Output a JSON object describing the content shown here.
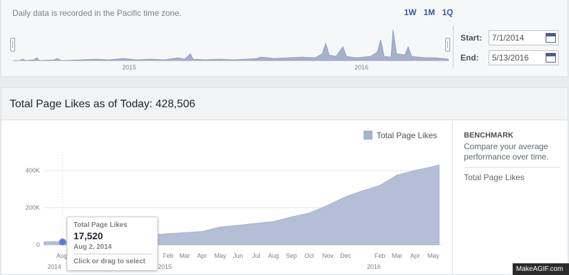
{
  "range": {
    "note": "Daily data is recorded in the Pacific time zone.",
    "zoom_options": [
      "1W",
      "1M",
      "1Q"
    ],
    "mini_years": [
      "2015",
      "2016"
    ],
    "start_label": "Start:",
    "start_value": "7/1/2014",
    "end_label": "End:",
    "end_value": "5/13/2016"
  },
  "card": {
    "title": "Total Page Likes as of Today: 428,506"
  },
  "legend": {
    "label": "Total Page Likes",
    "color": "#a5b1cd"
  },
  "benchmark": {
    "title": "BENCHMARK",
    "description": "Compare your average performance over time.",
    "item": "Total Page Likes"
  },
  "tooltip": {
    "label": "Total Page Likes",
    "value": "17,520",
    "date": "Aug 2, 2014",
    "action": "Click or drag to select"
  },
  "watermark": "MakeAGIF.com",
  "chart_data": {
    "type": "area",
    "series": [
      {
        "name": "Total Page Likes",
        "color": "#a5b1cd"
      }
    ],
    "y_ticks": [
      "0",
      "200K",
      "400K"
    ],
    "ylim": [
      0,
      440000
    ],
    "x_ticks": [
      "Aug",
      "Feb",
      "Mar",
      "Apr",
      "May",
      "Jun",
      "Jul",
      "Aug",
      "Sep",
      "Oct",
      "Nov",
      "Dec",
      "Feb",
      "Mar",
      "Apr",
      "May"
    ],
    "x_years": [
      "2014",
      "2015",
      "2016"
    ],
    "x": [
      "2014-07-01",
      "2014-08-01",
      "2014-09-01",
      "2014-10-01",
      "2014-11-01",
      "2014-12-01",
      "2015-01-01",
      "2015-02-01",
      "2015-03-01",
      "2015-04-01",
      "2015-05-01",
      "2015-06-01",
      "2015-07-01",
      "2015-08-01",
      "2015-09-01",
      "2015-10-01",
      "2015-11-01",
      "2015-12-01",
      "2016-01-01",
      "2016-02-01",
      "2016-03-01",
      "2016-04-01",
      "2016-05-01",
      "2016-05-13"
    ],
    "values": [
      15000,
      17520,
      22000,
      30000,
      38000,
      45000,
      52000,
      60000,
      65000,
      72000,
      95000,
      105000,
      115000,
      125000,
      150000,
      170000,
      210000,
      255000,
      290000,
      320000,
      375000,
      400000,
      420000,
      430000
    ],
    "grid": true,
    "legend_position": "top-right"
  }
}
